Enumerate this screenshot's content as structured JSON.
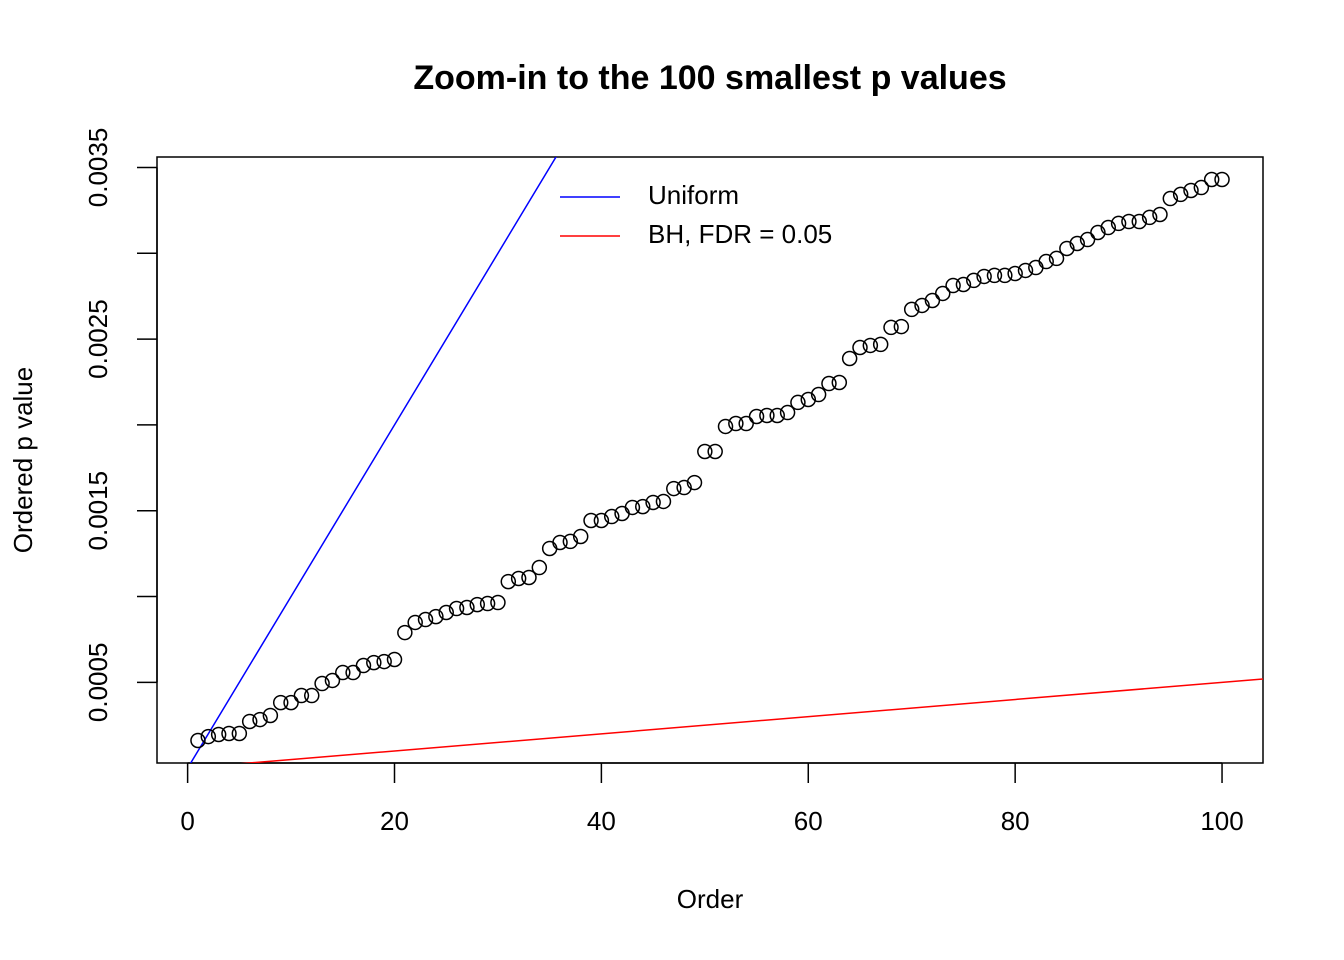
{
  "chart_data": {
    "type": "scatter",
    "title": "Zoom-in to the 100 smallest p values",
    "x_label": "Order",
    "y_label": "Ordered p value",
    "x": [
      1,
      2,
      3,
      4,
      5,
      6,
      7,
      8,
      9,
      10,
      11,
      12,
      13,
      14,
      15,
      16,
      17,
      18,
      19,
      20,
      21,
      22,
      23,
      24,
      25,
      26,
      27,
      28,
      29,
      30,
      31,
      32,
      33,
      34,
      35,
      36,
      37,
      38,
      39,
      40,
      41,
      42,
      43,
      44,
      45,
      46,
      47,
      48,
      49,
      50,
      51,
      52,
      53,
      54,
      55,
      56,
      57,
      58,
      59,
      60,
      61,
      62,
      63,
      64,
      65,
      66,
      67,
      68,
      69,
      70,
      71,
      72,
      73,
      74,
      75,
      76,
      77,
      78,
      79,
      80,
      81,
      82,
      83,
      84,
      85,
      86,
      87,
      88,
      89,
      90,
      91,
      92,
      93,
      94,
      95,
      96,
      97,
      98,
      99,
      100
    ],
    "values": [
      0.000161,
      0.000184,
      0.000196,
      0.000202,
      0.000202,
      0.000272,
      0.000283,
      0.000307,
      0.000382,
      0.000382,
      0.000423,
      0.000423,
      0.000493,
      0.000511,
      0.000557,
      0.000557,
      0.000598,
      0.000615,
      0.000621,
      0.000633,
      0.00079,
      0.000849,
      0.000866,
      0.000883,
      0.000907,
      0.00093,
      0.000936,
      0.000953,
      0.000959,
      0.000965,
      0.001087,
      0.001105,
      0.001111,
      0.001169,
      0.00128,
      0.001315,
      0.001321,
      0.00135,
      0.001443,
      0.001443,
      0.001466,
      0.001484,
      0.001519,
      0.001524,
      0.001548,
      0.001554,
      0.001629,
      0.001635,
      0.001664,
      0.001845,
      0.001845,
      0.001991,
      0.002008,
      0.002008,
      0.002049,
      0.002055,
      0.002055,
      0.002072,
      0.002131,
      0.002148,
      0.002177,
      0.002241,
      0.002247,
      0.002387,
      0.002451,
      0.002463,
      0.002469,
      0.002568,
      0.002573,
      0.002673,
      0.002696,
      0.002725,
      0.002766,
      0.002812,
      0.002818,
      0.002842,
      0.002865,
      0.002871,
      0.002871,
      0.002882,
      0.0029,
      0.002917,
      0.002952,
      0.00297,
      0.003028,
      0.003057,
      0.00308,
      0.003121,
      0.00315,
      0.003174,
      0.003185,
      0.003185,
      0.003209,
      0.003226,
      0.003319,
      0.003343,
      0.003366,
      0.003383,
      0.00343,
      0.00343
    ],
    "color": "#000000",
    "lines": [
      {
        "name": "Uniform",
        "color": "#0000ff",
        "slope": 0.0001
      },
      {
        "name": "BH, FDR = 0.05",
        "color": "#ff0000",
        "slope": 5e-06
      }
    ],
    "legend": "top",
    "xlim": [
      -2.96,
      103.96
    ],
    "ylim": [
      3e-05,
      0.003561
    ],
    "xticks": [
      0,
      20,
      40,
      60,
      80,
      100
    ],
    "yticks": [
      0.0005,
      {
        "value": 0.001,
        "label": null
      },
      0.0015,
      {
        "value": 0.002,
        "label": null
      },
      0.0025,
      {
        "value": 0.003,
        "label": null
      },
      0.0035
    ]
  }
}
